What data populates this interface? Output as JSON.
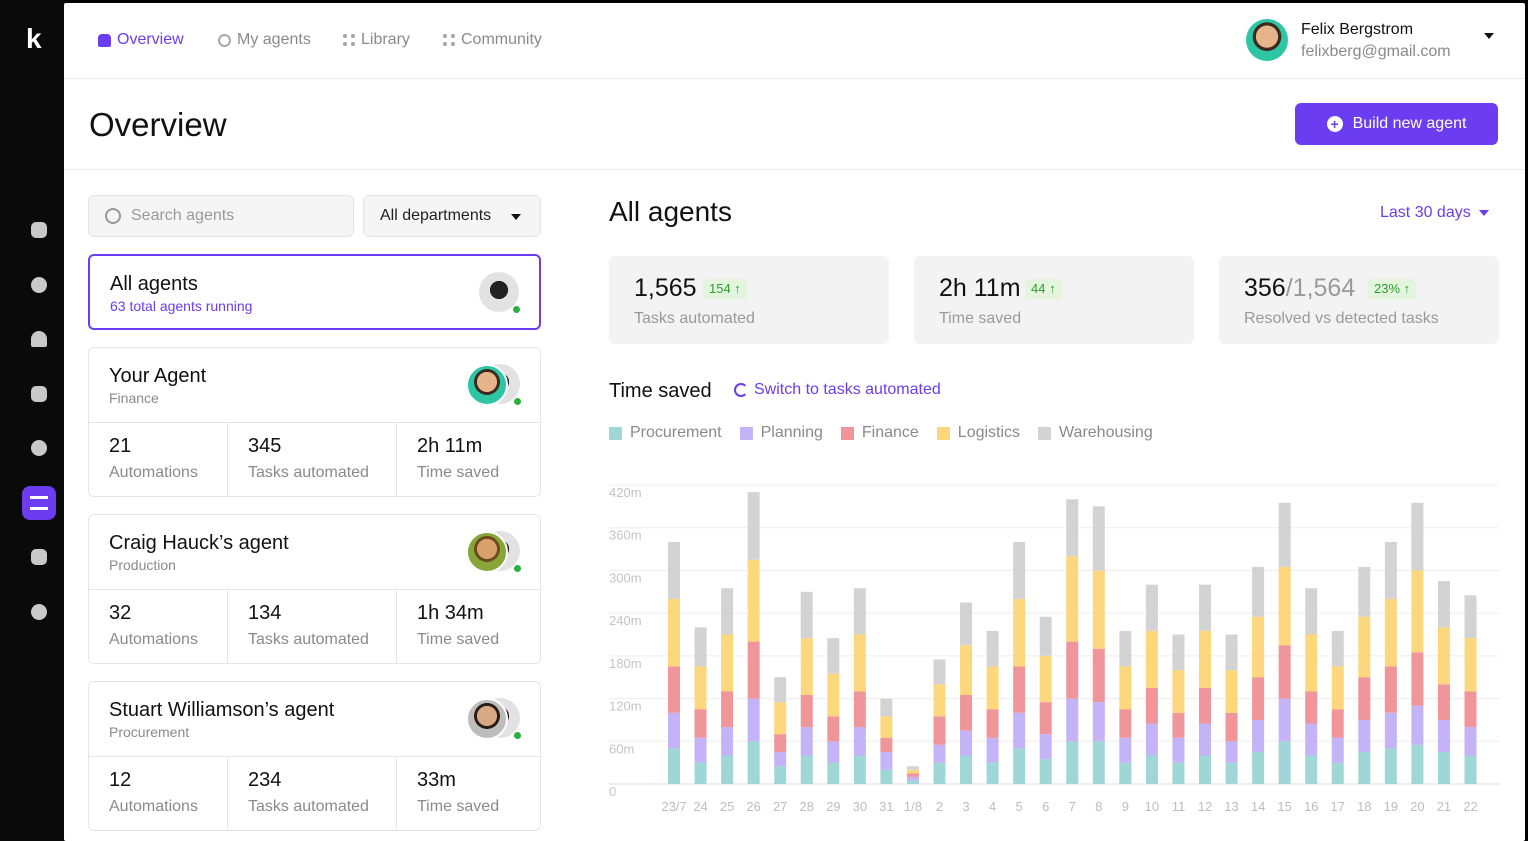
{
  "app": {
    "logo": "k"
  },
  "rail": [
    "trend-icon",
    "search-icon",
    "alarm-icon",
    "package-icon",
    "emoji-icon",
    "agents-icon",
    "clipboard-icon",
    "alert-icon"
  ],
  "nav": [
    {
      "label": "Overview",
      "active": true
    },
    {
      "label": "My agents",
      "active": false
    },
    {
      "label": "Library",
      "active": false
    },
    {
      "label": "Community",
      "active": false
    }
  ],
  "user": {
    "name": "Felix Bergstrom",
    "email": "felixberg@gmail.com"
  },
  "page": {
    "title": "Overview",
    "build_label": "Build new agent"
  },
  "filters": {
    "search_placeholder": "Search agents",
    "department": "All departments"
  },
  "all_agents_card": {
    "title": "All agents",
    "sub": "63 total agents running"
  },
  "agents": [
    {
      "title": "Your Agent",
      "dept": "Finance",
      "automations": "21",
      "tasks": "345",
      "time": "2h 11m"
    },
    {
      "title": "Craig Hauck’s agent",
      "dept": "Production",
      "automations": "32",
      "tasks": "134",
      "time": "1h 34m"
    },
    {
      "title": "Stuart Williamson’s agent",
      "dept": "Procurement",
      "automations": "12",
      "tasks": "234",
      "time": "33m"
    }
  ],
  "stat_labels": {
    "automations": "Automations",
    "tasks": "Tasks automated",
    "time": "Time saved"
  },
  "right": {
    "title": "All agents",
    "range": "Last 30 days"
  },
  "kpis": [
    {
      "value": "1,565",
      "badge": "154 ↑",
      "label": "Tasks automated"
    },
    {
      "value": "2h 11m",
      "badge": "44 ↑",
      "label": "Time saved"
    },
    {
      "value": "356",
      "value_muted": "/1,564",
      "badge": "23% ↑",
      "label": "Resolved vs detected tasks"
    }
  ],
  "timesaved": {
    "title": "Time saved",
    "switch_label": "Switch to tasks automated"
  },
  "colors": {
    "accent": "#6c3cf0",
    "Procurement": "#9fd6d6",
    "Planning": "#c4b3f7",
    "Finance": "#f0959a",
    "Logistics": "#fcd77e",
    "Warehousing": "#d3d3d3"
  },
  "chart_data": {
    "type": "bar",
    "stacked": true,
    "ylim": [
      0,
      420
    ],
    "yticks": [
      "420m",
      "360m",
      "300m",
      "240m",
      "180m",
      "120m",
      "60m",
      "0"
    ],
    "categories": [
      "23/7",
      "24",
      "25",
      "26",
      "27",
      "28",
      "29",
      "30",
      "31",
      "1/8",
      "2",
      "3",
      "4",
      "5",
      "6",
      "7",
      "8",
      "9",
      "10",
      "11",
      "12",
      "13",
      "14",
      "15",
      "16",
      "17",
      "18",
      "19",
      "20",
      "21",
      "22"
    ],
    "series": [
      {
        "name": "Procurement",
        "values": [
          50,
          30,
          40,
          60,
          25,
          40,
          30,
          40,
          20,
          5,
          30,
          40,
          30,
          50,
          35,
          60,
          60,
          30,
          40,
          30,
          40,
          30,
          45,
          60,
          40,
          30,
          45,
          50,
          55,
          45,
          40
        ]
      },
      {
        "name": "Planning",
        "values": [
          50,
          35,
          40,
          60,
          20,
          40,
          30,
          40,
          25,
          5,
          25,
          35,
          35,
          50,
          35,
          60,
          55,
          35,
          45,
          35,
          45,
          30,
          45,
          60,
          45,
          35,
          45,
          50,
          55,
          45,
          40
        ]
      },
      {
        "name": "Finance",
        "values": [
          65,
          40,
          50,
          80,
          25,
          45,
          35,
          50,
          20,
          5,
          40,
          50,
          40,
          65,
          45,
          80,
          75,
          40,
          50,
          35,
          50,
          40,
          60,
          75,
          45,
          40,
          60,
          65,
          75,
          50,
          50
        ]
      },
      {
        "name": "Logistics",
        "values": [
          95,
          60,
          80,
          115,
          45,
          80,
          60,
          80,
          30,
          5,
          45,
          70,
          60,
          95,
          65,
          120,
          110,
          60,
          80,
          60,
          80,
          60,
          85,
          110,
          80,
          60,
          85,
          95,
          115,
          80,
          75
        ]
      },
      {
        "name": "Warehousing",
        "values": [
          80,
          55,
          65,
          95,
          35,
          65,
          50,
          65,
          25,
          5,
          35,
          60,
          50,
          80,
          55,
          80,
          90,
          50,
          65,
          50,
          65,
          50,
          70,
          90,
          65,
          50,
          70,
          80,
          95,
          65,
          60
        ]
      }
    ]
  }
}
